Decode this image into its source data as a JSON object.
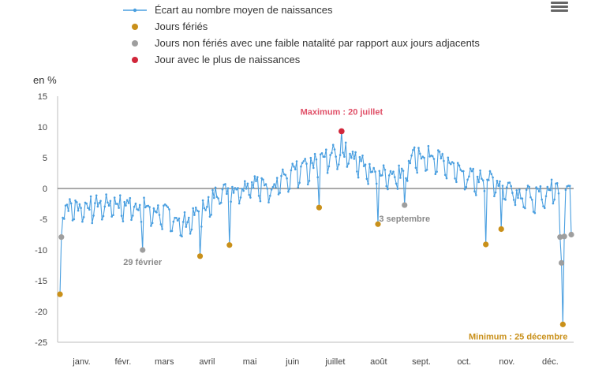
{
  "legend": {
    "items": [
      {
        "label": "Écart au nombre moyen de naissances",
        "type": "line",
        "color": "#4a9fe0"
      },
      {
        "label": "Jours fériés",
        "type": "dot",
        "color": "#c9901a"
      },
      {
        "label": "Jours non fériés avec une faible natalité par rapport aux jours adjacents",
        "type": "dot",
        "color": "#9e9e9e"
      },
      {
        "label": "Jour avec le plus de naissances",
        "type": "dot",
        "color": "#d1263a"
      }
    ]
  },
  "menu_icon": "hamburger-icon",
  "chart_data": {
    "type": "line",
    "ylabel": "en %",
    "ylim": [
      -25,
      15
    ],
    "yticks": [
      15,
      10,
      5,
      0,
      -5,
      -10,
      -15,
      -20,
      -25
    ],
    "xlabels": [
      "janv.",
      "févr.",
      "mars",
      "avril",
      "mai",
      "juin",
      "juillet",
      "août",
      "sept.",
      "oct.",
      "nov.",
      "déc."
    ],
    "grid": false,
    "legend_position": "top",
    "line_color": "#4a9fe0",
    "series": [
      {
        "name": "Écart au nombre moyen de naissances",
        "x_day_of_year": "1-366",
        "values_estimated": true
      }
    ],
    "holidays": {
      "color": "#c9901a",
      "points": [
        {
          "day": 1,
          "value": -17.2
        },
        {
          "day": 101,
          "value": -11.0
        },
        {
          "day": 122,
          "value": -9.2
        },
        {
          "day": 186,
          "value": -3.1
        },
        {
          "day": 228,
          "value": -5.8
        },
        {
          "day": 305,
          "value": -9.1
        },
        {
          "day": 316,
          "value": -6.6
        },
        {
          "day": 360,
          "value": -22.1
        }
      ]
    },
    "low_non_holidays": {
      "color": "#9e9e9e",
      "points": [
        {
          "day": 2,
          "value": -7.9
        },
        {
          "day": 60,
          "value": -10.0
        },
        {
          "day": 247,
          "value": -2.7
        },
        {
          "day": 358,
          "value": -7.9
        },
        {
          "day": 359,
          "value": -12.1
        },
        {
          "day": 361,
          "value": -7.8
        },
        {
          "day": 366,
          "value": -7.5
        }
      ]
    },
    "max_point": {
      "color": "#d1263a",
      "day": 202,
      "value": 9.3
    },
    "annotations": [
      {
        "text": "Maximum : 20 juillet",
        "color": "#e05068",
        "day": 202,
        "value": 9.3
      },
      {
        "text": "29 février",
        "color": "#8a8a8a",
        "day": 60,
        "value": -10.0
      },
      {
        "text": "3 septembre",
        "color": "#8a8a8a",
        "day": 247,
        "value": -2.7
      },
      {
        "text": "Minimum : 25 décembre",
        "color": "#c9901a",
        "day": 360,
        "value": -22.1
      }
    ]
  }
}
